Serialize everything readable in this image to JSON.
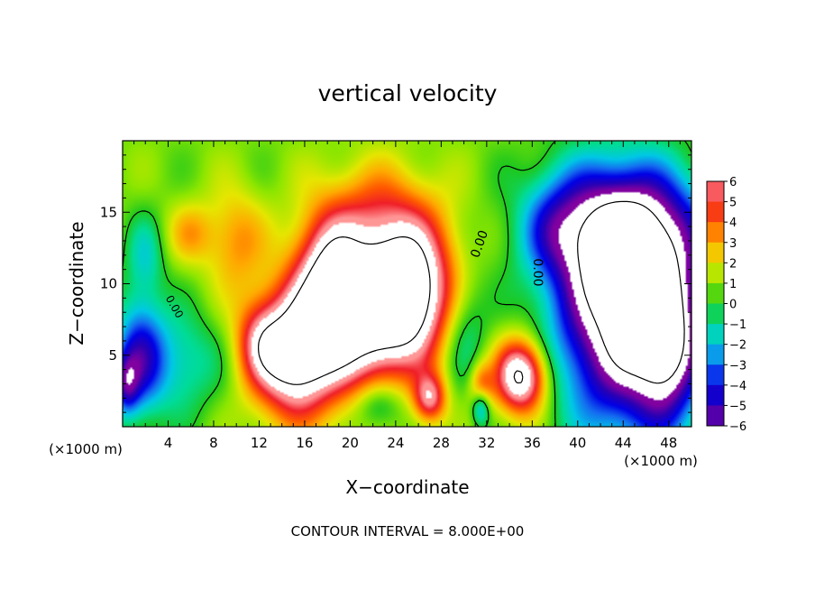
{
  "chart_data": {
    "type": "heatmap",
    "title": "vertical velocity",
    "xlabel": "X−coordinate",
    "ylabel": "Z−coordinate",
    "x_unit": "(×1000 m)",
    "x_unit_right": "(×1000 m)",
    "footer": "CONTOUR INTERVAL = 8.000E+00",
    "xlim": [
      0,
      50
    ],
    "ylim": [
      0,
      20
    ],
    "x_ticks": [
      4,
      8,
      12,
      16,
      20,
      24,
      28,
      32,
      36,
      40,
      44,
      48
    ],
    "y_ticks": [
      5,
      10,
      15
    ],
    "colorbar": {
      "ticks": [
        "6",
        "5",
        "4",
        "3",
        "2",
        "1",
        "0",
        "−1",
        "−2",
        "−3",
        "−4",
        "−5",
        "−6"
      ],
      "range": [
        -6,
        6
      ]
    },
    "contour_labels": [
      "0.00",
      "0.00",
      "0.00"
    ],
    "features": [
      {
        "x": 25,
        "y": 9.5,
        "sx": 3,
        "sy": 3.5,
        "amp": 9
      },
      {
        "x": 20,
        "y": 7.5,
        "sx": 3.2,
        "sy": 3.5,
        "amp": 7
      },
      {
        "x": 15,
        "y": 5,
        "sx": 2.5,
        "sy": 3,
        "amp": 8
      },
      {
        "x": 18,
        "y": 11,
        "sx": 2,
        "sy": 2.8,
        "amp": 4.5
      },
      {
        "x": 22,
        "y": 15,
        "sx": 3.5,
        "sy": 2.5,
        "amp": 2.5
      },
      {
        "x": 10,
        "y": 13,
        "sx": 1.8,
        "sy": 2.5,
        "amp": 2.5
      },
      {
        "x": 12,
        "y": 6,
        "sx": 1.5,
        "sy": 2,
        "amp": 3
      },
      {
        "x": 27,
        "y": 2,
        "sx": 1,
        "sy": 1.2,
        "amp": 5
      },
      {
        "x": 35,
        "y": 3.5,
        "sx": 1.6,
        "sy": 1.8,
        "amp": 8
      },
      {
        "x": 31.5,
        "y": 2.3,
        "sx": 0.7,
        "sy": 1.3,
        "amp": 5
      },
      {
        "x": 6,
        "y": 13.5,
        "sx": 1.5,
        "sy": 1.5,
        "amp": 2
      },
      {
        "x": 44,
        "y": 8,
        "sx": 4,
        "sy": 5.5,
        "amp": -10
      },
      {
        "x": 44,
        "y": 14,
        "sx": 5,
        "sy": 3,
        "amp": -6
      },
      {
        "x": 48,
        "y": 6,
        "sx": 2,
        "sy": 4,
        "amp": -6
      },
      {
        "x": 30,
        "y": 7,
        "sx": 1.5,
        "sy": 3,
        "amp": -2.5
      },
      {
        "x": 31.5,
        "y": 1.5,
        "sx": 0.6,
        "sy": 1,
        "amp": -6
      },
      {
        "x": 1.5,
        "y": 5,
        "sx": 1.5,
        "sy": 3,
        "amp": -4.5
      },
      {
        "x": 5,
        "y": 4.5,
        "sx": 2.5,
        "sy": 2.5,
        "amp": -2.5
      },
      {
        "x": 22.5,
        "y": 1.5,
        "sx": 1.5,
        "sy": 1.2,
        "amp": -2.5
      },
      {
        "x": 38,
        "y": 14,
        "sx": 2,
        "sy": 2.5,
        "amp": -2
      },
      {
        "x": 2,
        "y": 12,
        "sx": 1.2,
        "sy": 2,
        "amp": -2
      },
      {
        "x": 0.3,
        "y": 3,
        "sx": 0.8,
        "sy": 1.5,
        "amp": -4
      }
    ]
  }
}
